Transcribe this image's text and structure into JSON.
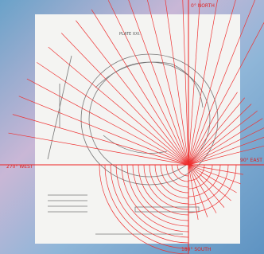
{
  "compass": {
    "north": "0° NORTH",
    "east": "90° EAST",
    "west": "270° WEST",
    "south": "180° SOUTH"
  },
  "plate": "PLATE XXI."
}
